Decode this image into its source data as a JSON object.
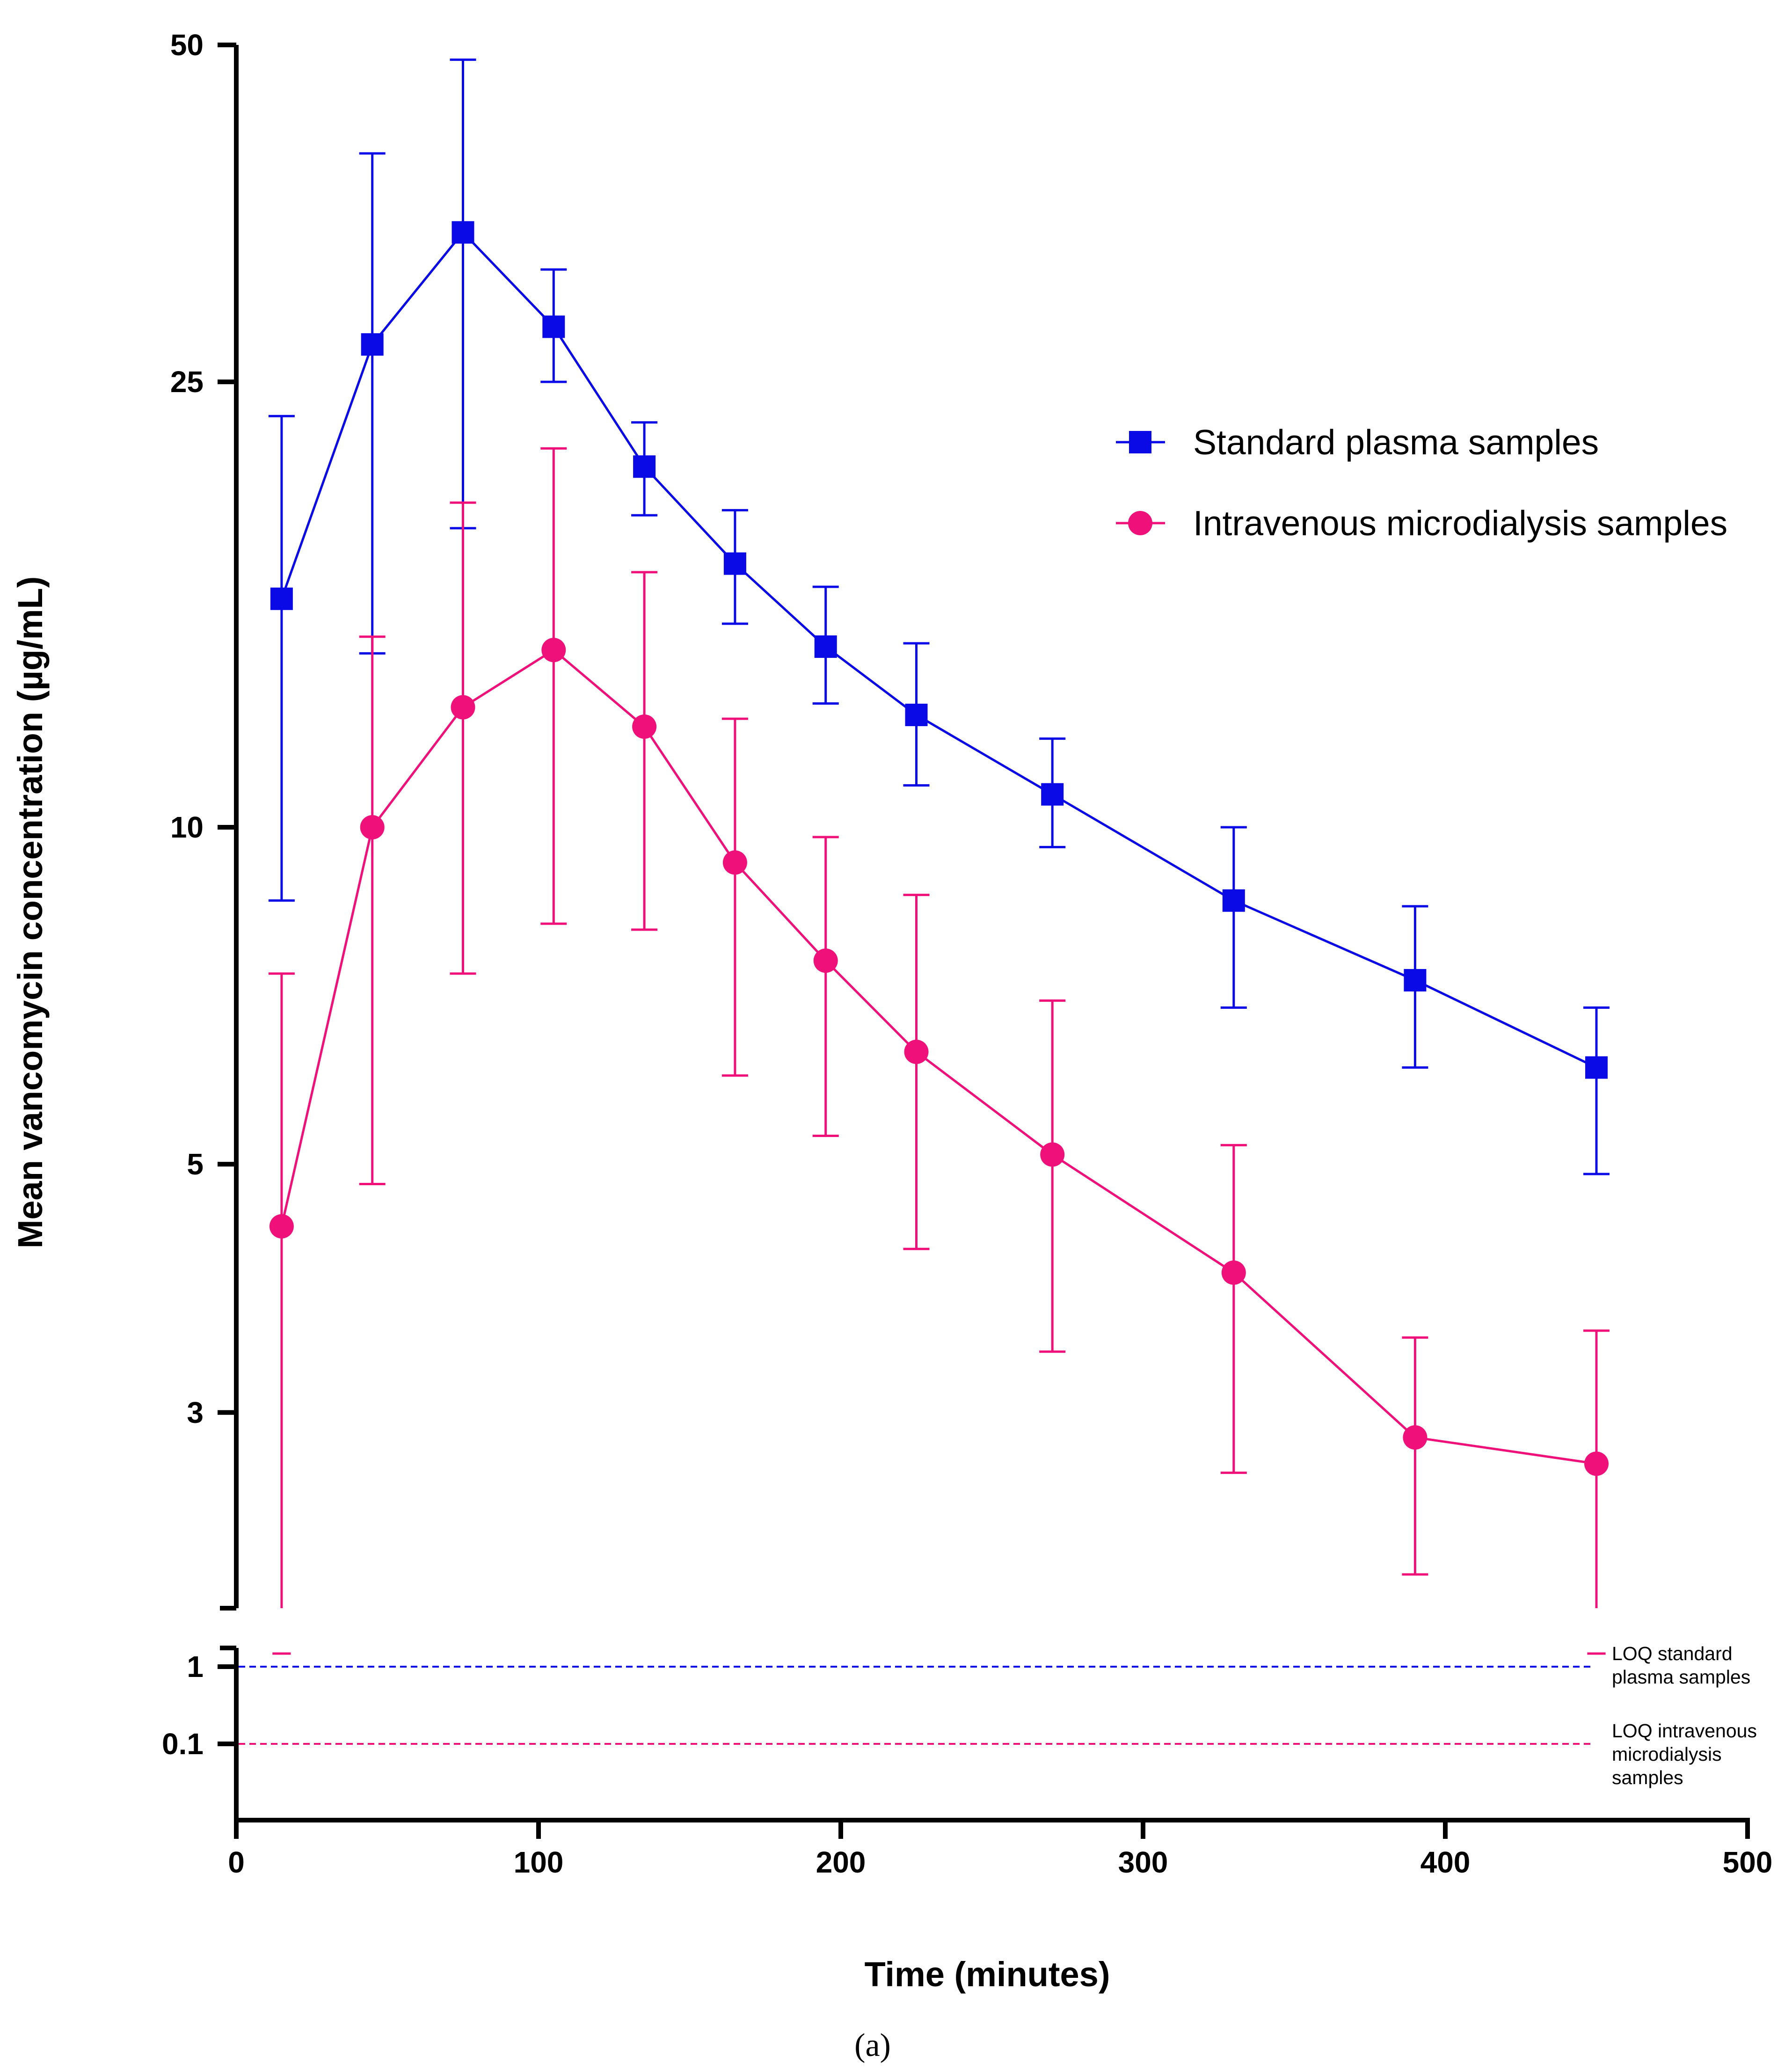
{
  "chart_data": {
    "type": "line",
    "xlabel": "Time (minutes)",
    "ylabel": "Mean vancomycin concentration (µg/mL)",
    "caption": "(a)",
    "y_scale": "log",
    "xlim": [
      0,
      500
    ],
    "ylim": [
      2.3,
      50
    ],
    "x_ticks": [
      0,
      100,
      200,
      300,
      400,
      500
    ],
    "y_ticks": [
      3,
      5,
      10,
      25,
      50
    ],
    "lower_segment_ticks": [
      1,
      0.1
    ],
    "legend_position": "right",
    "series": [
      {
        "name": "Standard plasma samples",
        "color": "#0a0ae6",
        "marker": "square",
        "points": [
          {
            "x": 15,
            "y": 16.0,
            "err_low": 8.6,
            "err_high": 23.3
          },
          {
            "x": 45,
            "y": 27.0,
            "err_low": 14.3,
            "err_high": 40.0
          },
          {
            "x": 75,
            "y": 34.0,
            "err_low": 18.5,
            "err_high": 48.5
          },
          {
            "x": 105,
            "y": 28.0,
            "err_low": 25.0,
            "err_high": 31.5
          },
          {
            "x": 135,
            "y": 21.0,
            "err_low": 19.0,
            "err_high": 23.0
          },
          {
            "x": 165,
            "y": 17.2,
            "err_low": 15.2,
            "err_high": 19.2
          },
          {
            "x": 195,
            "y": 14.5,
            "err_low": 12.9,
            "err_high": 16.4
          },
          {
            "x": 225,
            "y": 12.6,
            "err_low": 10.9,
            "err_high": 14.6
          },
          {
            "x": 270,
            "y": 10.7,
            "err_low": 9.6,
            "err_high": 12.0
          },
          {
            "x": 330,
            "y": 8.6,
            "err_low": 6.9,
            "err_high": 10.0
          },
          {
            "x": 390,
            "y": 7.3,
            "err_low": 6.1,
            "err_high": 8.5
          },
          {
            "x": 450,
            "y": 6.1,
            "err_low": 4.9,
            "err_high": 6.9
          }
        ]
      },
      {
        "name": "Intravenous microdialysis samples",
        "color": "#f0107a",
        "marker": "circle",
        "points": [
          {
            "x": 15,
            "y": 4.4,
            "err_low": 1.0,
            "err_high": 7.4
          },
          {
            "x": 45,
            "y": 10.0,
            "err_low": 4.8,
            "err_high": 14.8
          },
          {
            "x": 75,
            "y": 12.8,
            "err_low": 7.4,
            "err_high": 19.5
          },
          {
            "x": 105,
            "y": 14.4,
            "err_low": 8.2,
            "err_high": 21.8
          },
          {
            "x": 135,
            "y": 12.3,
            "err_low": 8.1,
            "err_high": 16.9
          },
          {
            "x": 165,
            "y": 9.3,
            "err_low": 6.0,
            "err_high": 12.5
          },
          {
            "x": 195,
            "y": 7.6,
            "err_low": 5.3,
            "err_high": 9.8
          },
          {
            "x": 225,
            "y": 6.3,
            "err_low": 4.2,
            "err_high": 8.7
          },
          {
            "x": 270,
            "y": 5.1,
            "err_low": 3.4,
            "err_high": 7.0
          },
          {
            "x": 330,
            "y": 4.0,
            "err_low": 2.65,
            "err_high": 5.2
          },
          {
            "x": 390,
            "y": 2.85,
            "err_low": 2.15,
            "err_high": 3.5
          },
          {
            "x": 450,
            "y": 2.7,
            "err_low": 2.0,
            "err_high": 3.55
          }
        ]
      }
    ],
    "reference_lines": [
      {
        "name": "LOQ standard plasma samples",
        "y": 1,
        "color": "#0a0ae6",
        "style": "dashed",
        "label_lines": [
          "LOQ standard",
          "plasma samples"
        ]
      },
      {
        "name": "LOQ intravenous microdialysis samples",
        "y": 0.1,
        "color": "#f0107a",
        "style": "dashed",
        "label_lines": [
          "LOQ intravenous",
          "microdialysis",
          "samples"
        ]
      }
    ]
  }
}
